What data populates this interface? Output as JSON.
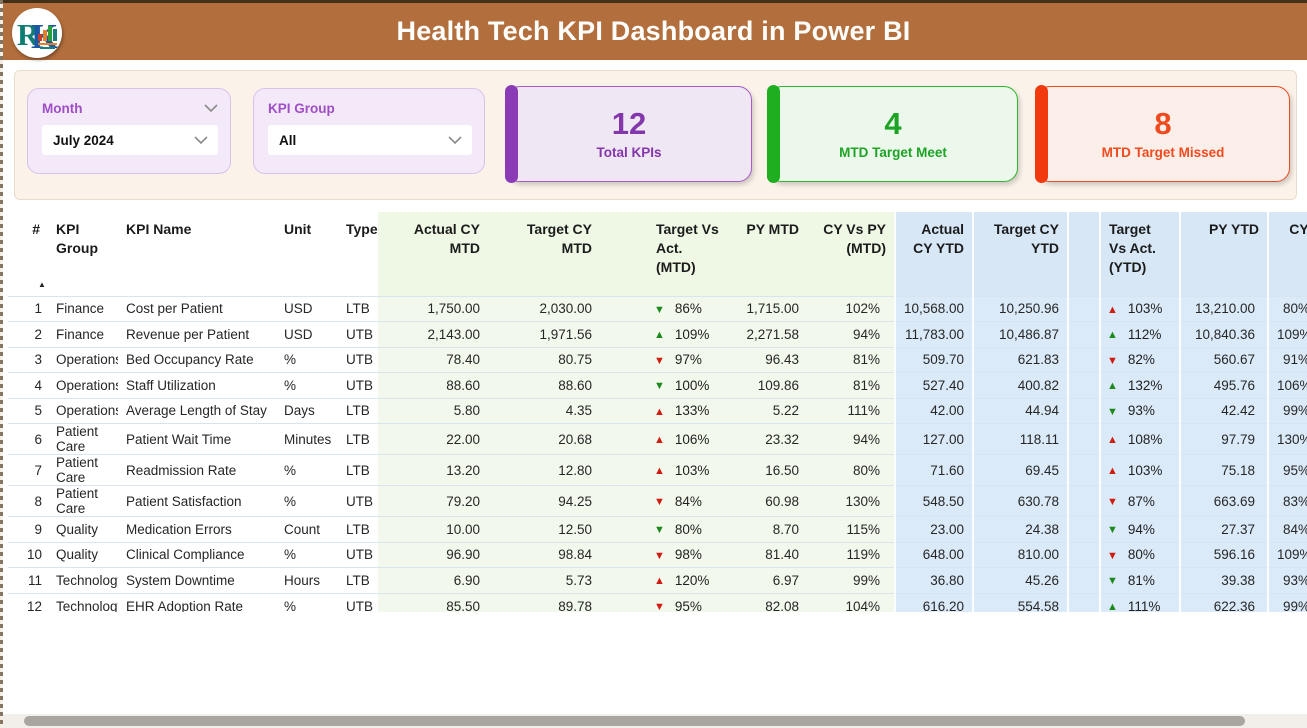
{
  "page": {
    "title": "Health Tech KPI Dashboard in Power BI"
  },
  "logo": {
    "monogram": "RK"
  },
  "filters": {
    "month": {
      "label": "Month",
      "value": "July 2024"
    },
    "kpi_group": {
      "label": "KPI Group",
      "value": "All"
    }
  },
  "cards": [
    {
      "id": "total-kpis",
      "value": "12",
      "label": "Total KPIs",
      "accent": "#8B3BB5",
      "bg": "#EFE7F4",
      "border": "#A65BC8",
      "text": "#8436AB"
    },
    {
      "id": "mtd-target-meet",
      "value": "4",
      "label": "MTD Target Meet",
      "accent": "#1FAE1F",
      "bg": "#ECF8EC",
      "border": "#2EB82E",
      "text": "#1DA425"
    },
    {
      "id": "mtd-target-missed",
      "value": "8",
      "label": "MTD Target Missed",
      "accent": "#F23A0F",
      "bg": "#FCEFE9",
      "border": "#E84C22",
      "text": "#F04A1F"
    }
  ],
  "colors": {
    "brand_brown": "#B26E3C",
    "filterbar_bg": "#FBF3EA",
    "slicer_bg": "#F3E9F8",
    "mtd_section_bg": "#F2F9EC",
    "ytd_section_bg": "#DBEAF8",
    "arrow_good_green": "#1E8A1E",
    "arrow_bad_red": "#D01B10"
  },
  "table": {
    "columns": [
      {
        "id": "num",
        "label": "#",
        "section": "base",
        "align": "right",
        "sort": true
      },
      {
        "id": "group",
        "label": "KPI Group",
        "section": "base"
      },
      {
        "id": "name",
        "label": "KPI Name",
        "section": "base"
      },
      {
        "id": "unit",
        "label": "Unit",
        "section": "base"
      },
      {
        "id": "type",
        "label": "Type",
        "section": "base"
      },
      {
        "id": "actual_mtd",
        "label": "Actual CY MTD",
        "section": "mtd",
        "align": "right"
      },
      {
        "id": "target_mtd",
        "label": "Target CY MTD",
        "section": "mtd",
        "align": "right"
      },
      {
        "id": "spacer_mtd",
        "label": "",
        "section": "mtd"
      },
      {
        "id": "tva_mtd",
        "label": "Target Vs Act. (MTD)",
        "section": "mtd",
        "kind": "arrow"
      },
      {
        "id": "py_mtd",
        "label": "PY MTD",
        "section": "mtd",
        "align": "right"
      },
      {
        "id": "cypy_mtd",
        "label": "CY Vs PY (MTD)",
        "section": "mtd",
        "align": "right"
      },
      {
        "id": "actual_ytd",
        "label": "Actual CY YTD",
        "section": "ytd",
        "align": "right"
      },
      {
        "id": "target_ytd",
        "label": "Target CY YTD",
        "section": "ytd",
        "align": "right"
      },
      {
        "id": "spacer_ytd",
        "label": "",
        "section": "ytd"
      },
      {
        "id": "tva_ytd",
        "label": "Target Vs Act. (YTD)",
        "section": "ytd",
        "kind": "arrow"
      },
      {
        "id": "py_ytd",
        "label": "PY YTD",
        "section": "ytd",
        "align": "right"
      },
      {
        "id": "cypy_ytd",
        "label": "CY Vs PY (YTD)",
        "section": "ytd",
        "align": "right"
      }
    ],
    "rows": [
      {
        "num": "1",
        "group": "Finance",
        "name": "Cost per Patient",
        "unit": "USD",
        "type": "LTB",
        "actual_mtd": "1,750.00",
        "target_mtd": "2,030.00",
        "tva_mtd": {
          "pct": "86%",
          "dir": "down",
          "good": true
        },
        "py_mtd": "1,715.00",
        "cypy_mtd": "102%",
        "actual_ytd": "10,568.00",
        "target_ytd": "10,250.96",
        "tva_ytd": {
          "pct": "103%",
          "dir": "up",
          "good": false
        },
        "py_ytd": "13,210.00",
        "cypy_ytd": "80%"
      },
      {
        "num": "2",
        "group": "Finance",
        "name": "Revenue per Patient",
        "unit": "USD",
        "type": "UTB",
        "actual_mtd": "2,143.00",
        "target_mtd": "1,971.56",
        "tva_mtd": {
          "pct": "109%",
          "dir": "up",
          "good": true
        },
        "py_mtd": "2,271.58",
        "cypy_mtd": "94%",
        "actual_ytd": "11,783.00",
        "target_ytd": "10,486.87",
        "tva_ytd": {
          "pct": "112%",
          "dir": "up",
          "good": true
        },
        "py_ytd": "10,840.36",
        "cypy_ytd": "109%"
      },
      {
        "num": "3",
        "group": "Operations",
        "name": "Bed Occupancy Rate",
        "unit": "%",
        "type": "UTB",
        "actual_mtd": "78.40",
        "target_mtd": "80.75",
        "tva_mtd": {
          "pct": "97%",
          "dir": "down",
          "good": false
        },
        "py_mtd": "96.43",
        "cypy_mtd": "81%",
        "actual_ytd": "509.70",
        "target_ytd": "621.83",
        "tva_ytd": {
          "pct": "82%",
          "dir": "down",
          "good": false
        },
        "py_ytd": "560.67",
        "cypy_ytd": "91%"
      },
      {
        "num": "4",
        "group": "Operations",
        "name": "Staff Utilization",
        "unit": "%",
        "type": "UTB",
        "actual_mtd": "88.60",
        "target_mtd": "88.60",
        "tva_mtd": {
          "pct": "100%",
          "dir": "down",
          "good": true
        },
        "py_mtd": "109.86",
        "cypy_mtd": "81%",
        "actual_ytd": "527.40",
        "target_ytd": "400.82",
        "tva_ytd": {
          "pct": "132%",
          "dir": "up",
          "good": true
        },
        "py_ytd": "495.76",
        "cypy_ytd": "106%"
      },
      {
        "num": "5",
        "group": "Operations",
        "name": "Average Length of Stay",
        "unit": "Days",
        "type": "LTB",
        "actual_mtd": "5.80",
        "target_mtd": "4.35",
        "tva_mtd": {
          "pct": "133%",
          "dir": "up",
          "good": false
        },
        "py_mtd": "5.22",
        "cypy_mtd": "111%",
        "actual_ytd": "42.00",
        "target_ytd": "44.94",
        "tva_ytd": {
          "pct": "93%",
          "dir": "down",
          "good": true
        },
        "py_ytd": "42.42",
        "cypy_ytd": "99%"
      },
      {
        "num": "6",
        "group": "Patient Care",
        "name": "Patient Wait Time",
        "unit": "Minutes",
        "type": "LTB",
        "actual_mtd": "22.00",
        "target_mtd": "20.68",
        "tva_mtd": {
          "pct": "106%",
          "dir": "up",
          "good": false
        },
        "py_mtd": "23.32",
        "cypy_mtd": "94%",
        "actual_ytd": "127.00",
        "target_ytd": "118.11",
        "tva_ytd": {
          "pct": "108%",
          "dir": "up",
          "good": false
        },
        "py_ytd": "97.79",
        "cypy_ytd": "130%"
      },
      {
        "num": "7",
        "group": "Patient Care",
        "name": "Readmission Rate",
        "unit": "%",
        "type": "LTB",
        "actual_mtd": "13.20",
        "target_mtd": "12.80",
        "tva_mtd": {
          "pct": "103%",
          "dir": "up",
          "good": false
        },
        "py_mtd": "16.50",
        "cypy_mtd": "80%",
        "actual_ytd": "71.60",
        "target_ytd": "69.45",
        "tva_ytd": {
          "pct": "103%",
          "dir": "up",
          "good": false
        },
        "py_ytd": "75.18",
        "cypy_ytd": "95%"
      },
      {
        "num": "8",
        "group": "Patient Care",
        "name": "Patient Satisfaction",
        "unit": "%",
        "type": "UTB",
        "actual_mtd": "79.20",
        "target_mtd": "94.25",
        "tva_mtd": {
          "pct": "84%",
          "dir": "down",
          "good": false
        },
        "py_mtd": "60.98",
        "cypy_mtd": "130%",
        "actual_ytd": "548.50",
        "target_ytd": "630.78",
        "tva_ytd": {
          "pct": "87%",
          "dir": "down",
          "good": false
        },
        "py_ytd": "663.69",
        "cypy_ytd": "83%"
      },
      {
        "num": "9",
        "group": "Quality",
        "name": "Medication Errors",
        "unit": "Count",
        "type": "LTB",
        "actual_mtd": "10.00",
        "target_mtd": "12.50",
        "tva_mtd": {
          "pct": "80%",
          "dir": "down",
          "good": true
        },
        "py_mtd": "8.70",
        "cypy_mtd": "115%",
        "actual_ytd": "23.00",
        "target_ytd": "24.38",
        "tva_ytd": {
          "pct": "94%",
          "dir": "down",
          "good": true
        },
        "py_ytd": "27.37",
        "cypy_ytd": "84%"
      },
      {
        "num": "10",
        "group": "Quality",
        "name": "Clinical Compliance",
        "unit": "%",
        "type": "UTB",
        "actual_mtd": "96.90",
        "target_mtd": "98.84",
        "tva_mtd": {
          "pct": "98%",
          "dir": "down",
          "good": false
        },
        "py_mtd": "81.40",
        "cypy_mtd": "119%",
        "actual_ytd": "648.00",
        "target_ytd": "810.00",
        "tva_ytd": {
          "pct": "80%",
          "dir": "down",
          "good": false
        },
        "py_ytd": "596.16",
        "cypy_ytd": "109%"
      },
      {
        "num": "11",
        "group": "Technology",
        "name": "System Downtime",
        "unit": "Hours",
        "type": "LTB",
        "actual_mtd": "6.90",
        "target_mtd": "5.73",
        "tva_mtd": {
          "pct": "120%",
          "dir": "up",
          "good": false
        },
        "py_mtd": "6.97",
        "cypy_mtd": "99%",
        "actual_ytd": "36.80",
        "target_ytd": "45.26",
        "tva_ytd": {
          "pct": "81%",
          "dir": "down",
          "good": true
        },
        "py_ytd": "39.38",
        "cypy_ytd": "93%"
      },
      {
        "num": "12",
        "group": "Technology",
        "name": "EHR Adoption Rate",
        "unit": "%",
        "type": "UTB",
        "actual_mtd": "85.50",
        "target_mtd": "89.78",
        "tva_mtd": {
          "pct": "95%",
          "dir": "down",
          "good": false
        },
        "py_mtd": "82.08",
        "cypy_mtd": "104%",
        "actual_ytd": "616.20",
        "target_ytd": "554.58",
        "tva_ytd": {
          "pct": "111%",
          "dir": "up",
          "good": true
        },
        "py_ytd": "622.36",
        "cypy_ytd": "99%"
      }
    ]
  }
}
